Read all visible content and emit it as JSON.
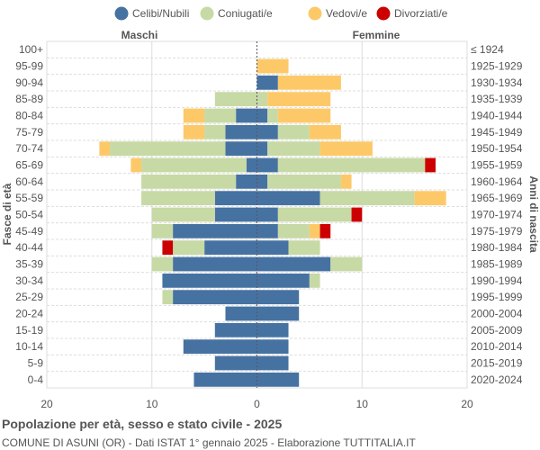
{
  "chart_data": {
    "type": "bar",
    "orientation": "horizontal-pyramid",
    "title": "Popolazione per età, sesso e stato civile - 2025",
    "subtitle": "COMUNE DI ASUNI (OR) - Dati ISTAT 1° gennaio 2025 - Elaborazione TUTTITALIA.IT",
    "left_group": "Maschi",
    "right_group": "Femmine",
    "ylabel_left": "Fasce di età",
    "ylabel_right": "Anni di nascita",
    "xlim": [
      -20,
      20
    ],
    "x_ticks": [
      "20",
      "10",
      "0",
      "10",
      "20"
    ],
    "grid": true,
    "legend_position": "top",
    "categories": [
      "100+",
      "95-99",
      "90-94",
      "85-89",
      "80-84",
      "75-79",
      "70-74",
      "65-69",
      "60-64",
      "55-59",
      "50-54",
      "45-49",
      "40-44",
      "35-39",
      "30-34",
      "25-29",
      "20-24",
      "15-19",
      "10-14",
      "5-9",
      "0-4"
    ],
    "birth_years": [
      "≤ 1924",
      "1925-1929",
      "1930-1934",
      "1935-1939",
      "1940-1944",
      "1945-1949",
      "1950-1954",
      "1955-1959",
      "1960-1964",
      "1965-1969",
      "1970-1974",
      "1975-1979",
      "1980-1984",
      "1985-1989",
      "1990-1994",
      "1995-1999",
      "2000-2004",
      "2005-2009",
      "2010-2014",
      "2015-2019",
      "2020-2024"
    ],
    "series": [
      {
        "name": "Celibi/Nubili",
        "color": "#4672a2",
        "male": [
          0,
          0,
          0,
          0,
          2,
          3,
          3,
          1,
          2,
          4,
          4,
          8,
          5,
          8,
          9,
          8,
          3,
          4,
          7,
          4,
          6
        ],
        "female": [
          0,
          0,
          2,
          0,
          1,
          2,
          1,
          2,
          1,
          6,
          2,
          2,
          3,
          7,
          5,
          4,
          4,
          3,
          3,
          3,
          4
        ]
      },
      {
        "name": "Coniugati/e",
        "color": "#c7d9a5",
        "male": [
          0,
          0,
          0,
          4,
          3,
          2,
          11,
          10,
          9,
          7,
          6,
          2,
          3,
          2,
          0,
          1,
          0,
          0,
          0,
          0,
          0
        ],
        "female": [
          0,
          0,
          0,
          1,
          1,
          3,
          5,
          14,
          7,
          9,
          7,
          3,
          3,
          3,
          1,
          0,
          0,
          0,
          0,
          0,
          0
        ]
      },
      {
        "name": "Vedovi/e",
        "color": "#fdc968",
        "male": [
          0,
          0,
          0,
          0,
          2,
          2,
          1,
          1,
          0,
          0,
          0,
          0,
          0,
          0,
          0,
          0,
          0,
          0,
          0,
          0,
          0
        ],
        "female": [
          0,
          3,
          6,
          6,
          5,
          3,
          5,
          0,
          1,
          3,
          0,
          1,
          0,
          0,
          0,
          0,
          0,
          0,
          0,
          0,
          0
        ]
      },
      {
        "name": "Divorziati/e",
        "color": "#cc0000",
        "male": [
          0,
          0,
          0,
          0,
          0,
          0,
          0,
          0,
          0,
          0,
          0,
          0,
          1,
          0,
          0,
          0,
          0,
          0,
          0,
          0,
          0
        ],
        "female": [
          0,
          0,
          0,
          0,
          0,
          0,
          0,
          1,
          0,
          0,
          1,
          1,
          0,
          0,
          0,
          0,
          0,
          0,
          0,
          0,
          0
        ]
      }
    ]
  }
}
